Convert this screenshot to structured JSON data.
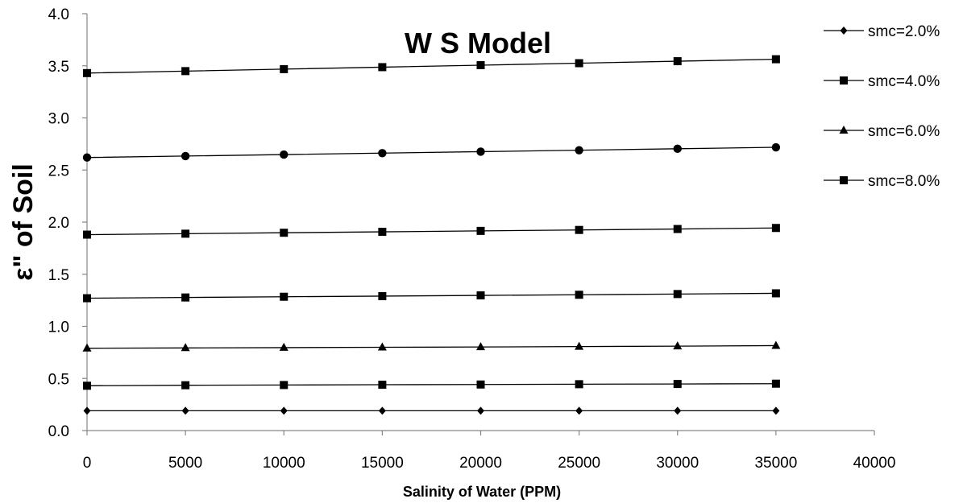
{
  "chart_data": {
    "type": "line",
    "title": "W S Model",
    "xlabel": "Salinity of Water (PPM)",
    "ylabel": "ε\" of Soil",
    "xlim": [
      0,
      40000
    ],
    "ylim": [
      0,
      4.0
    ],
    "x_ticks": [
      "0",
      "5000",
      "10000",
      "15000",
      "20000",
      "25000",
      "30000",
      "35000",
      "40000"
    ],
    "y_ticks": [
      "0.0",
      "0.5",
      "1.0",
      "1.5",
      "2.0",
      "2.5",
      "3.0",
      "3.5",
      "4.0"
    ],
    "x": [
      0,
      5000,
      10000,
      15000,
      20000,
      25000,
      30000,
      35000
    ],
    "grid": false,
    "legend_position": "top-right",
    "legend": [
      {
        "name": "smc=2.0%",
        "marker": "diamond"
      },
      {
        "name": "smc=4.0%",
        "marker": "square"
      },
      {
        "name": "smc=6.0%",
        "marker": "triangle"
      },
      {
        "name": "smc=8.0%",
        "marker": "square"
      }
    ],
    "series": [
      {
        "marker": "diamond",
        "values": [
          0.19,
          0.19,
          0.19,
          0.19,
          0.19,
          0.19,
          0.19,
          0.19
        ]
      },
      {
        "marker": "square",
        "values": [
          0.43,
          0.435,
          0.437,
          0.44,
          0.442,
          0.445,
          0.447,
          0.45
        ]
      },
      {
        "marker": "triangle",
        "values": [
          0.79,
          0.793,
          0.796,
          0.799,
          0.802,
          0.806,
          0.81,
          0.815
        ]
      },
      {
        "marker": "square",
        "values": [
          1.27,
          1.277,
          1.284,
          1.29,
          1.297,
          1.303,
          1.31,
          1.317
        ]
      },
      {
        "marker": "square",
        "values": [
          1.88,
          1.889,
          1.898,
          1.907,
          1.916,
          1.925,
          1.934,
          1.944
        ]
      },
      {
        "marker": "circle",
        "values": [
          2.62,
          2.634,
          2.648,
          2.662,
          2.676,
          2.69,
          2.704,
          2.718
        ]
      },
      {
        "marker": "square",
        "values": [
          3.43,
          3.449,
          3.468,
          3.487,
          3.506,
          3.525,
          3.544,
          3.563
        ]
      }
    ],
    "colors": {
      "line": "#000000",
      "axis": "#868686",
      "background": "#ffffff"
    }
  }
}
